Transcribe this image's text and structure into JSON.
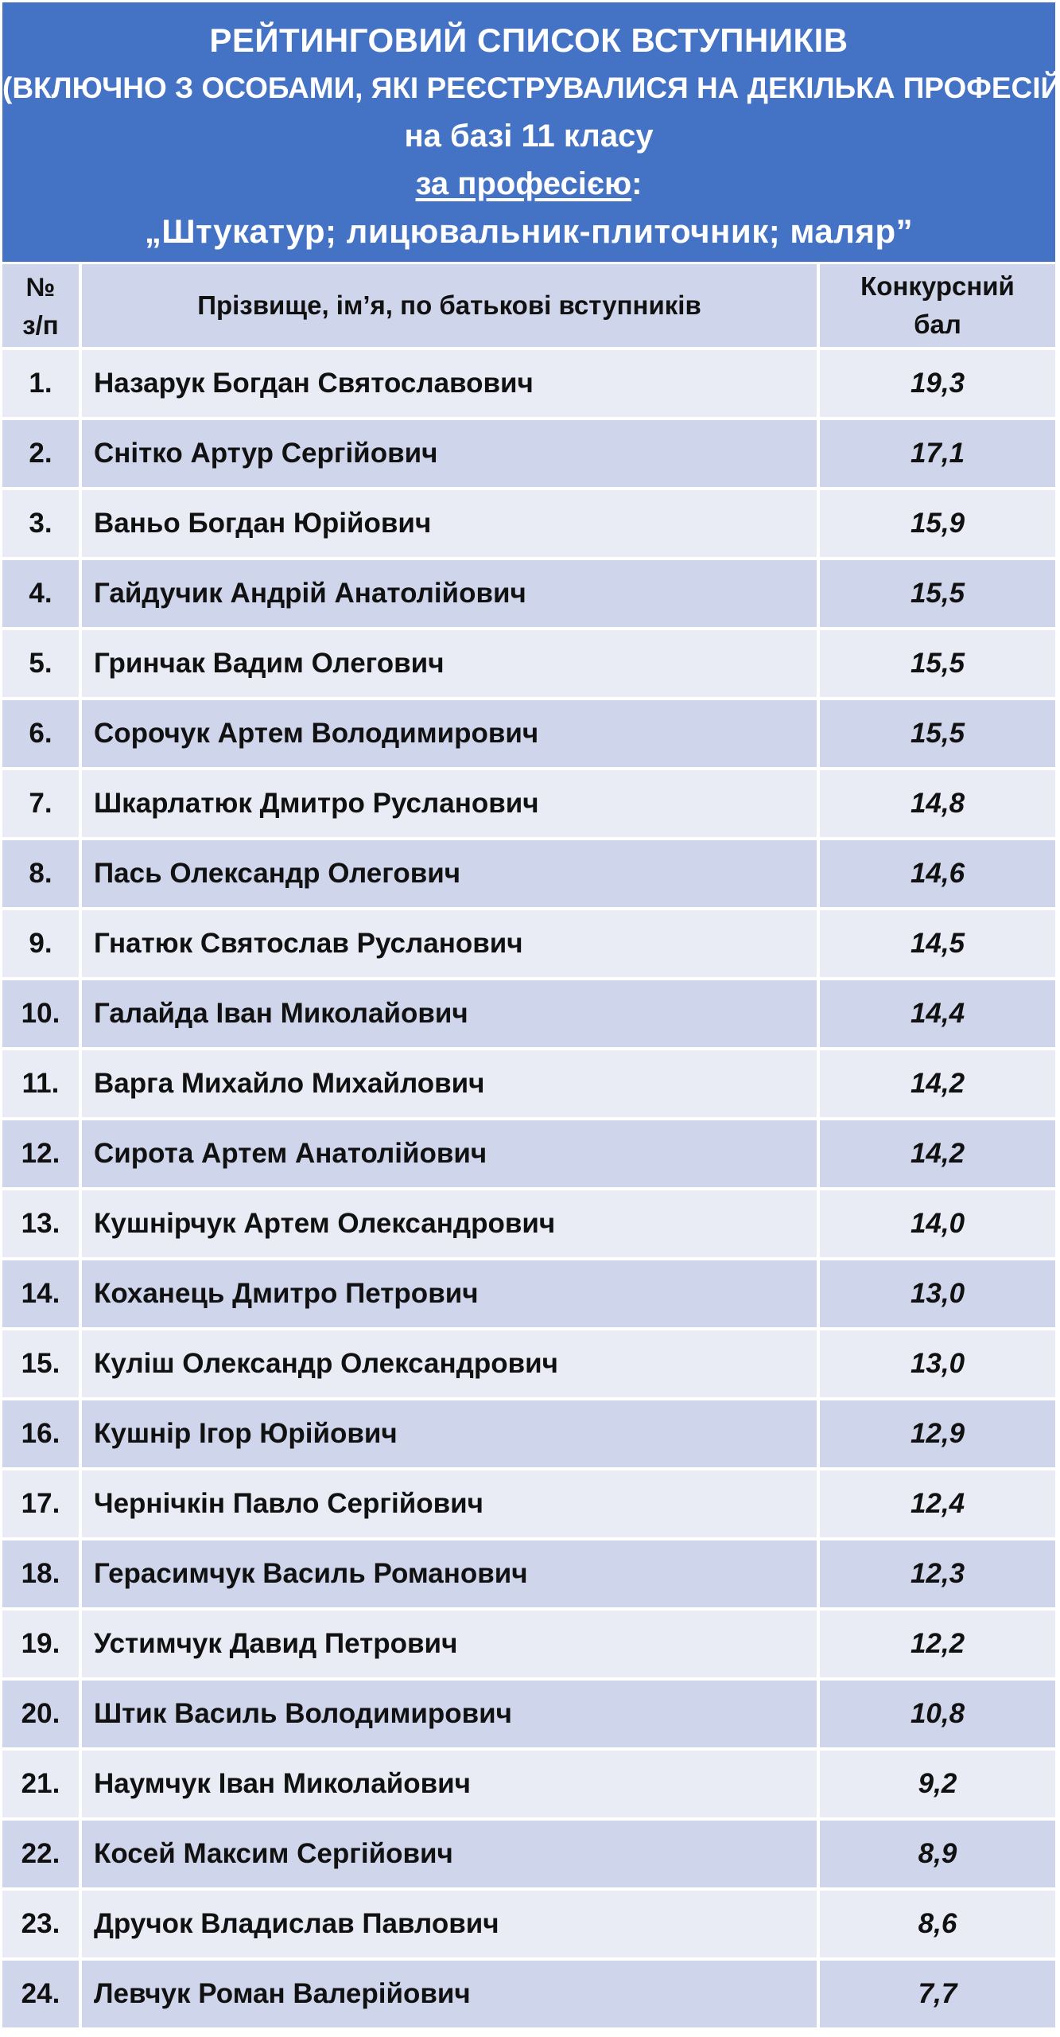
{
  "title": {
    "line1": "РЕЙТИНГОВИЙ СПИСОК ВСТУПНИКІВ",
    "line2": "(ВКЛЮЧНО З ОСОБАМИ, ЯКІ РЕЄСТРУВАЛИСЯ НА ДЕКІЛЬКА ПРОФЕСІЙ)",
    "line3": "на базі 11 класу",
    "line4_underlined": "за професією",
    "line4_suffix": ":",
    "line5": "„Штукатур; лицювальник-плиточник; маляр”"
  },
  "colors": {
    "banner": "#4472c4",
    "row_light": "#e9ebf5",
    "row_dark": "#cfd5ea"
  },
  "table": {
    "headers": {
      "num_line1": "№",
      "num_line2": "з/п",
      "name": "Прізвище, ім’я, по батькові вступників",
      "score_line1": "Конкурсний",
      "score_line2": "бал"
    },
    "rows": [
      {
        "num": "1.",
        "name": "Назарук Богдан Святославович",
        "score": "19,3"
      },
      {
        "num": "2.",
        "name": "Снітко Артур Сергійович",
        "score": "17,1"
      },
      {
        "num": "3.",
        "name": "Ваньо Богдан Юрійович",
        "score": "15,9"
      },
      {
        "num": "4.",
        "name": "Гайдучик Андрій Анатолійович",
        "score": "15,5"
      },
      {
        "num": "5.",
        "name": "Гринчак Вадим Олегович",
        "score": "15,5"
      },
      {
        "num": "6.",
        "name": "Сорочук Артем Володимирович",
        "score": "15,5"
      },
      {
        "num": "7.",
        "name": "Шкарлатюк Дмитро Русланович",
        "score": "14,8"
      },
      {
        "num": "8.",
        "name": "Пась Олександр Олегович",
        "score": "14,6"
      },
      {
        "num": "9.",
        "name": "Гнатюк Святослав Русланович",
        "score": "14,5"
      },
      {
        "num": "10.",
        "name": "Галайда Іван Миколайович",
        "score": "14,4"
      },
      {
        "num": "11.",
        "name": "Варга Михайло Михайлович",
        "score": "14,2"
      },
      {
        "num": "12.",
        "name": "Сирота Артем Анатолійович",
        "score": "14,2"
      },
      {
        "num": "13.",
        "name": "Кушнірчук Артем Олександрович",
        "score": "14,0"
      },
      {
        "num": "14.",
        "name": "Коханець Дмитро Петрович",
        "score": "13,0"
      },
      {
        "num": "15.",
        "name": "Куліш Олександр Олександрович",
        "score": "13,0"
      },
      {
        "num": "16.",
        "name": "Кушнір Ігор Юрійович",
        "score": "12,9"
      },
      {
        "num": "17.",
        "name": "Чернічкін Павло Сергійович",
        "score": "12,4"
      },
      {
        "num": "18.",
        "name": "Герасимчук Василь Романович",
        "score": "12,3"
      },
      {
        "num": "19.",
        "name": "Устимчук Давид Петрович",
        "score": "12,2"
      },
      {
        "num": "20.",
        "name": "Штик Василь Володимирович",
        "score": "10,8"
      },
      {
        "num": "21.",
        "name": "Наумчук Іван Миколайович",
        "score": "9,2"
      },
      {
        "num": "22.",
        "name": "Косей Максим Сергійович",
        "score": "8,9"
      },
      {
        "num": "23.",
        "name": "Дручок Владислав Павлович",
        "score": "8,6"
      },
      {
        "num": "24.",
        "name": "Левчук Роман Валерійович",
        "score": "7,7"
      }
    ]
  }
}
